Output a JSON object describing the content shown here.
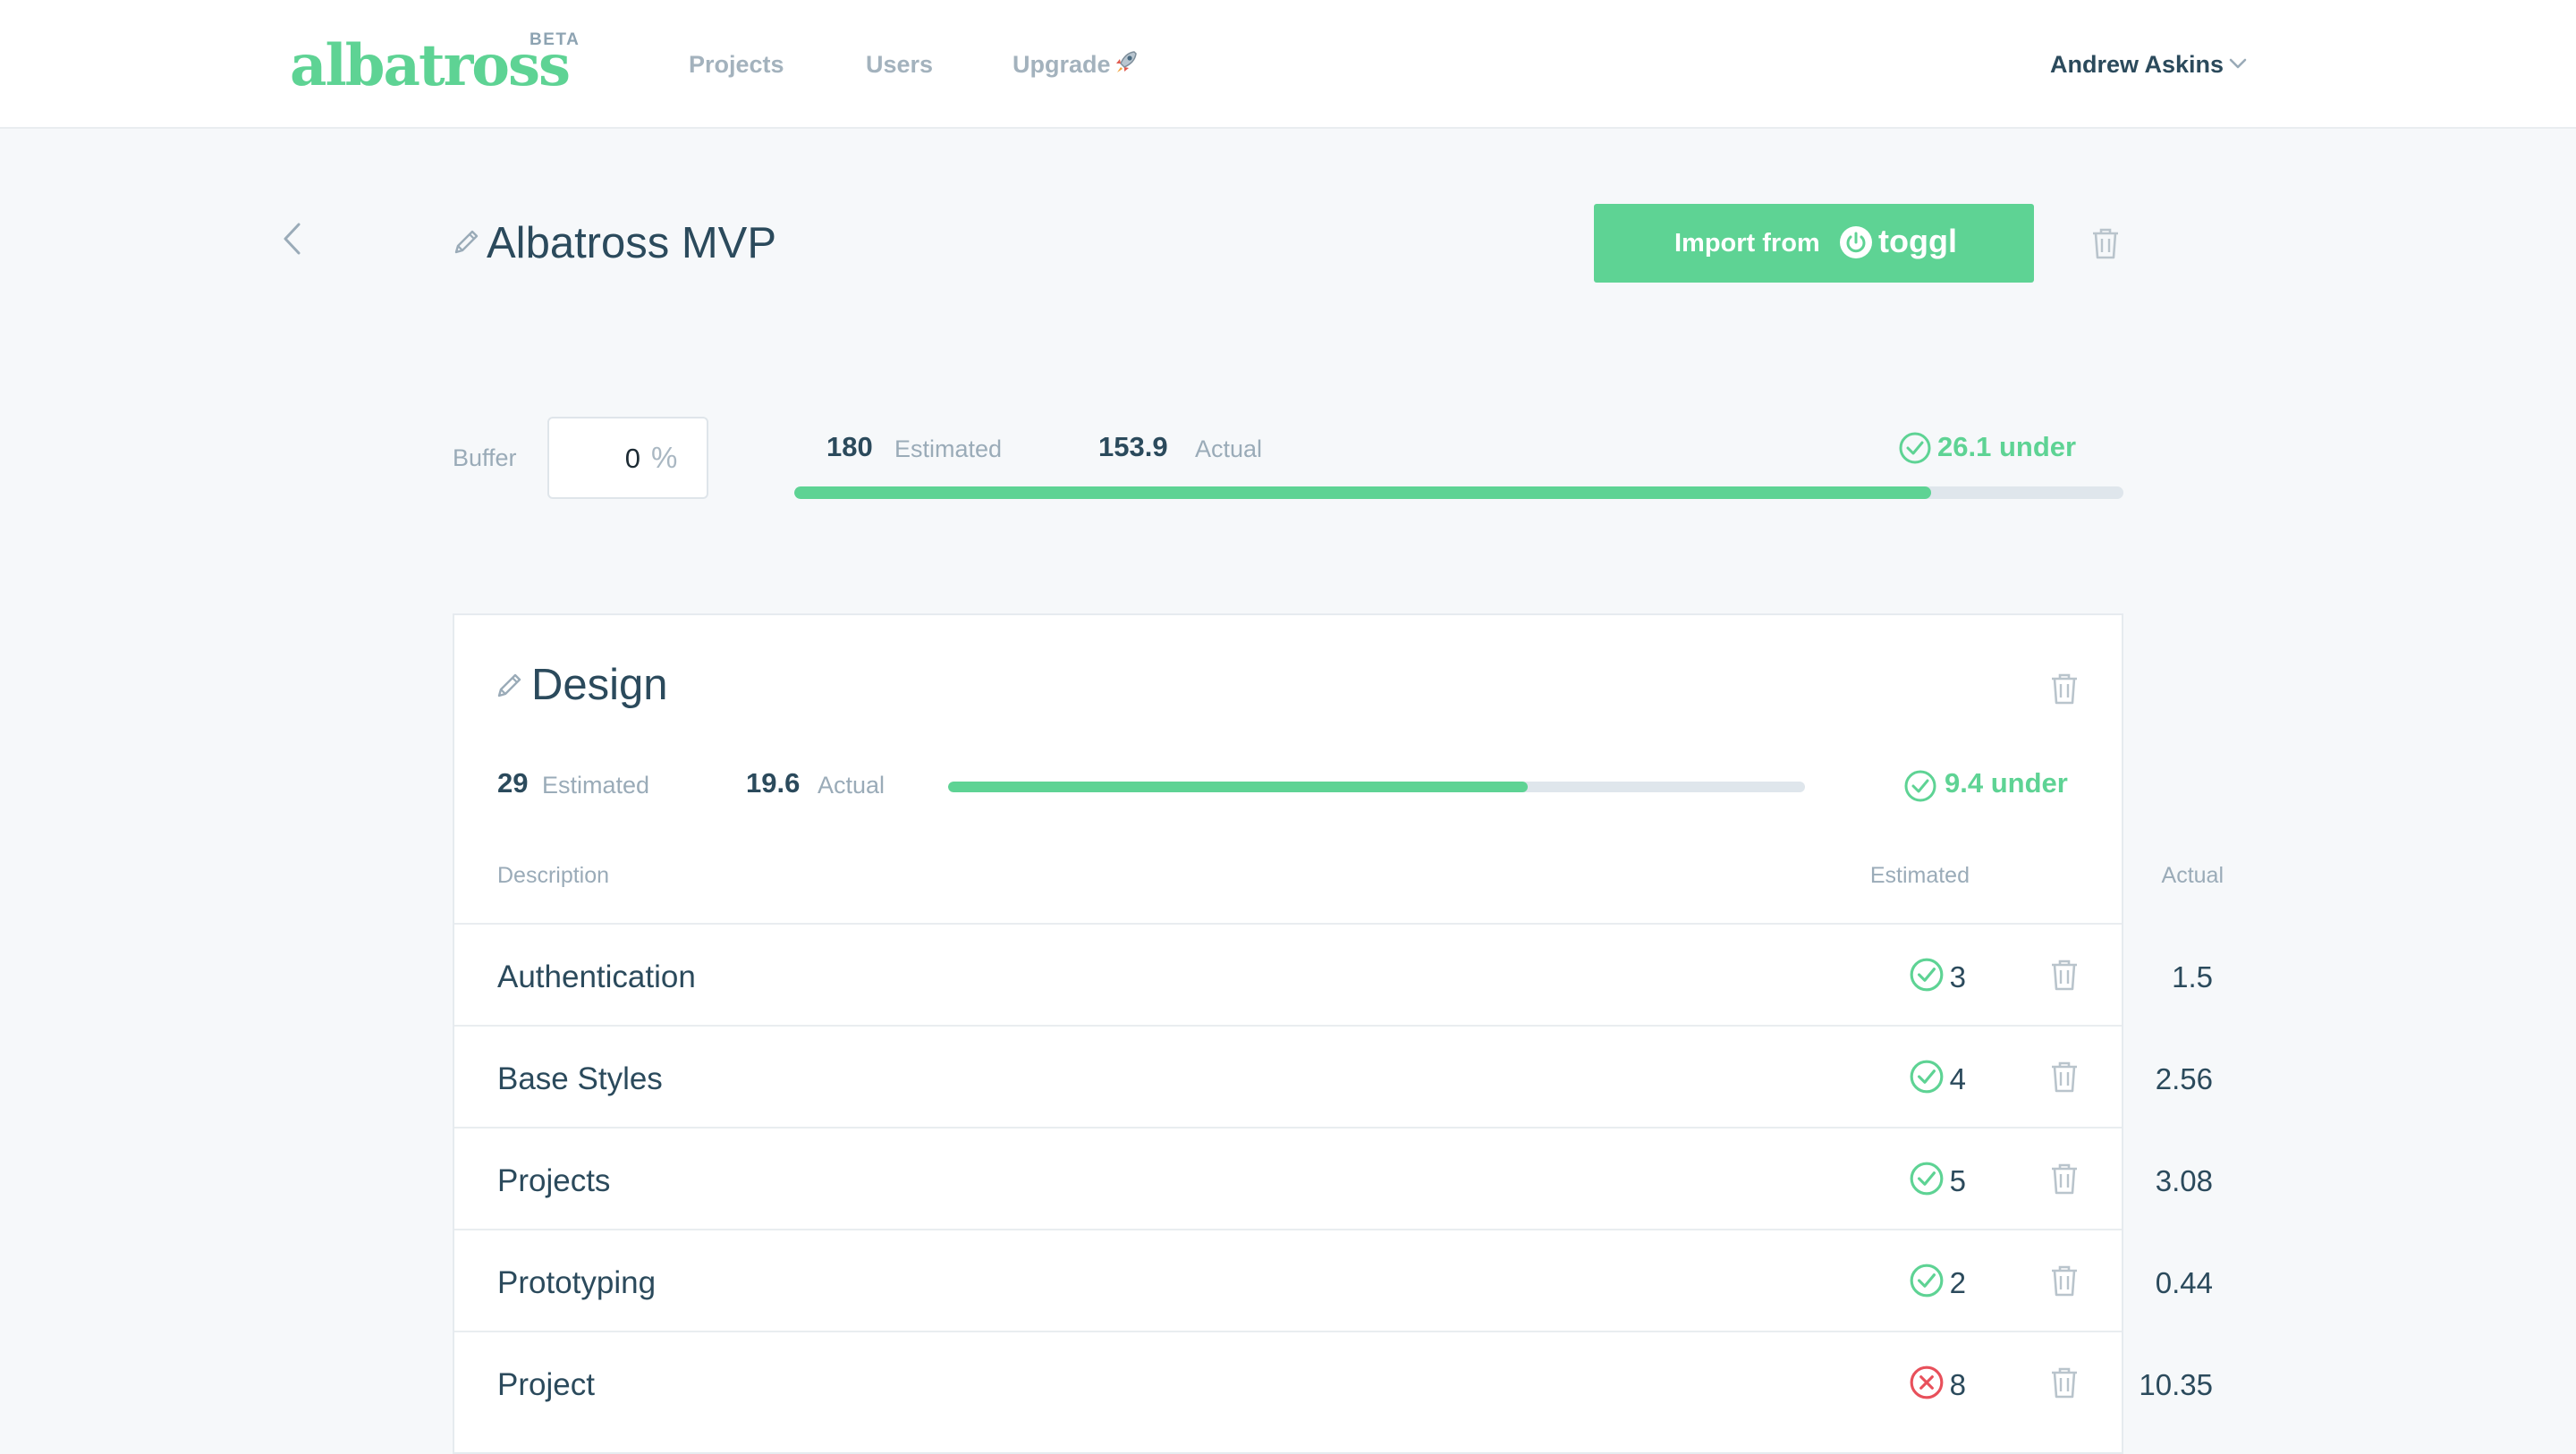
{
  "app": {
    "logo": "albatross",
    "badge": "BETA"
  },
  "nav": {
    "projects": "Projects",
    "users": "Users",
    "upgrade": "Upgrade",
    "user_name": "Andrew Askins"
  },
  "project": {
    "title": "Albatross MVP",
    "import_label": "Import from",
    "import_brand": "toggl"
  },
  "summary": {
    "buffer_label": "Buffer",
    "buffer_value": "0",
    "buffer_unit": "%",
    "estimated_value": "180",
    "estimated_label": "Estimated",
    "actual_value": "153.9",
    "actual_label": "Actual",
    "status_text": "26.1 under",
    "progress": 0.855
  },
  "section": {
    "title": "Design",
    "estimated_value": "29",
    "estimated_label": "Estimated",
    "actual_value": "19.6",
    "actual_label": "Actual",
    "status_text": "9.4 under",
    "progress": 0.676,
    "headers": {
      "description": "Description",
      "estimated": "Estimated",
      "actual": "Actual"
    },
    "rows": [
      {
        "description": "Authentication",
        "estimated": "3",
        "actual": "1.5",
        "status": "under"
      },
      {
        "description": "Base Styles",
        "estimated": "4",
        "actual": "2.56",
        "status": "under"
      },
      {
        "description": "Projects",
        "estimated": "5",
        "actual": "3.08",
        "status": "under"
      },
      {
        "description": "Prototyping",
        "estimated": "2",
        "actual": "0.44",
        "status": "under"
      },
      {
        "description": "Project",
        "estimated": "8",
        "actual": "10.35",
        "status": "over"
      }
    ]
  },
  "colors": {
    "accent": "#5ed394",
    "danger": "#e8505b",
    "text": "#2b4a5c",
    "muted": "#9aabb8"
  }
}
